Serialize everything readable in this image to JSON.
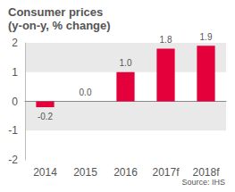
{
  "chart_data": {
    "type": "bar",
    "title": "Consumer prices",
    "subtitle": "(y-on-y, % change)",
    "source": "Source: IHS",
    "categories": [
      "2014",
      "2015",
      "2016",
      "2017f",
      "2018f"
    ],
    "values": [
      -0.2,
      0.0,
      1.0,
      1.8,
      1.9
    ],
    "value_labels": [
      "-0.2",
      "0.0",
      "1.0",
      "1.8",
      "1.9"
    ],
    "color": "#e4003b",
    "ylim": [
      -2,
      2
    ],
    "yticks": [
      -2,
      -1,
      0,
      1,
      2
    ],
    "grid": true,
    "data_labels": true
  }
}
